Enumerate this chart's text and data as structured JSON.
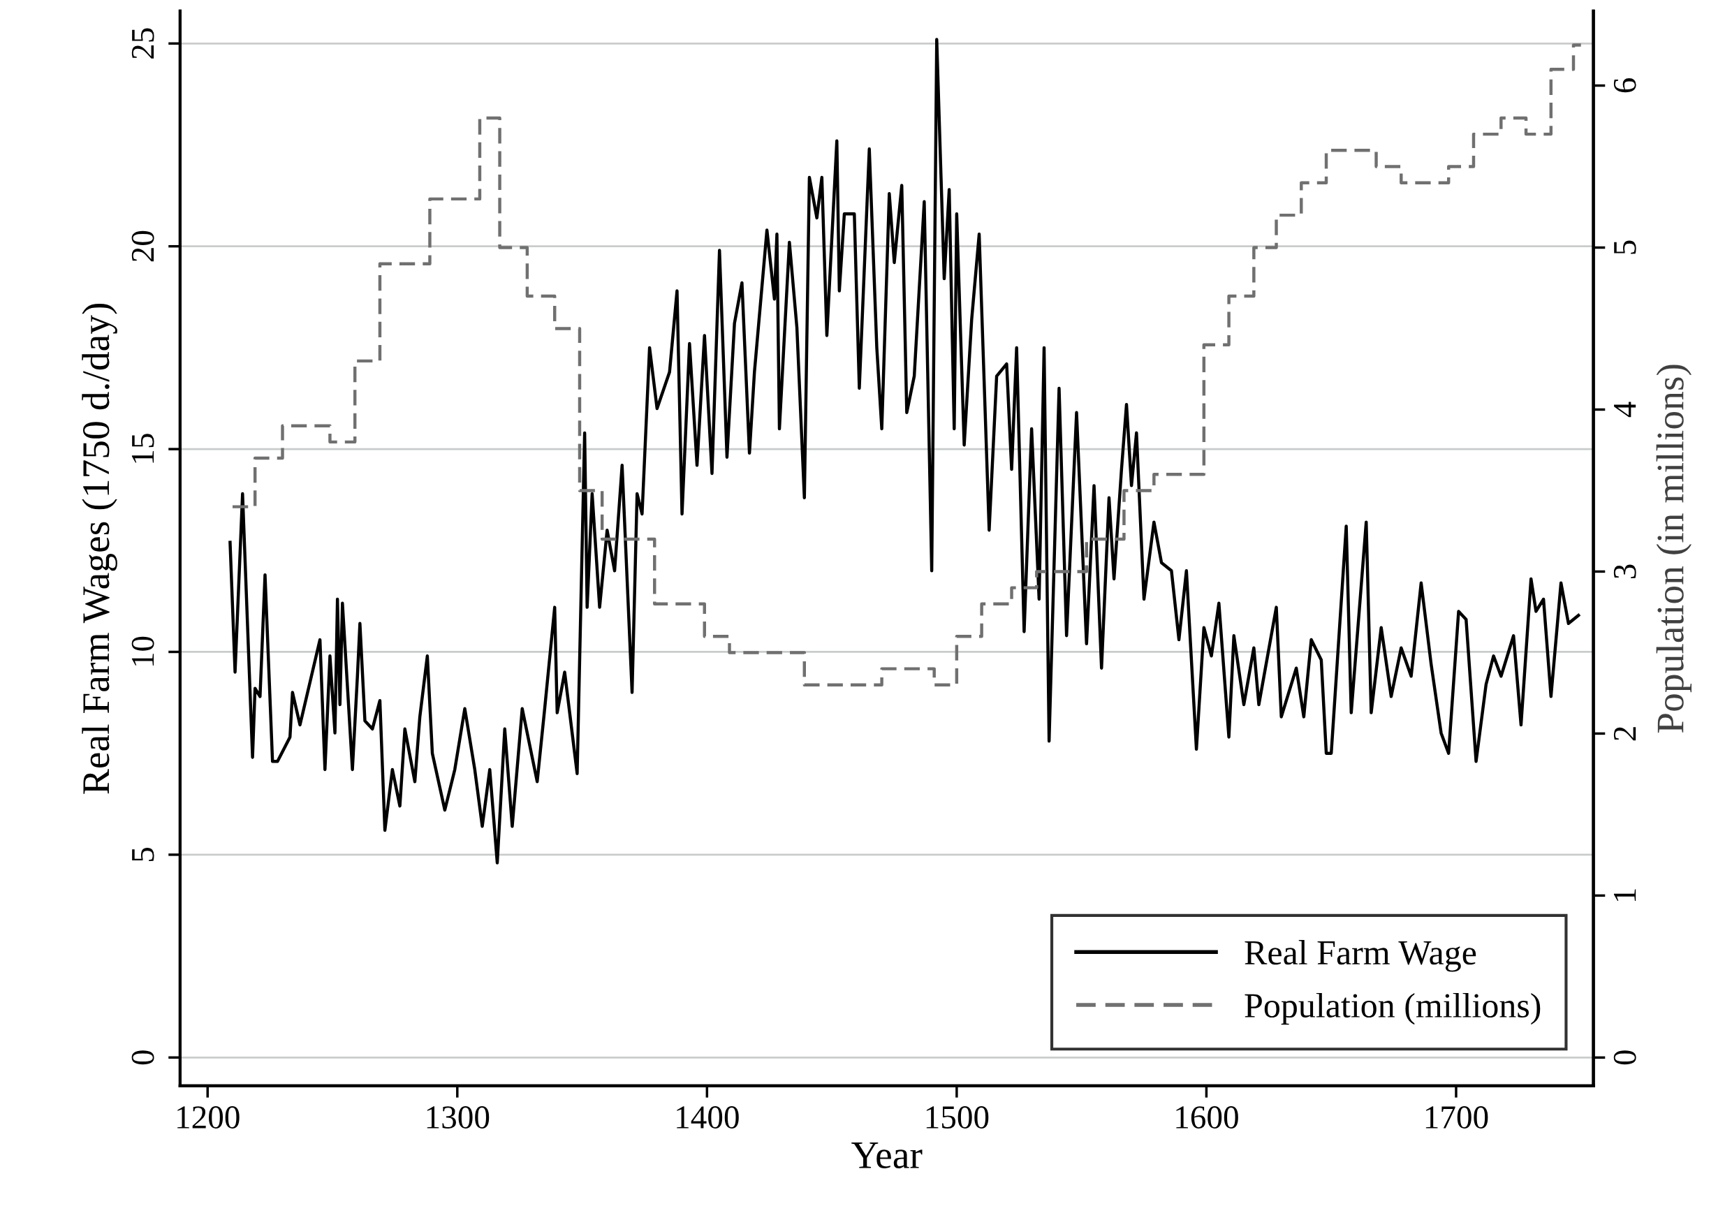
{
  "chart_data": {
    "type": "line",
    "xlabel": "Year",
    "ylabel": "Real Farm Wages (1750 d./day)",
    "y2label": "Population (in millions)",
    "xlim": [
      1189,
      1755
    ],
    "xticks": [
      1200,
      1300,
      1400,
      1500,
      1600,
      1700
    ],
    "ylim": [
      -0.7,
      25.8
    ],
    "yticks": [
      0,
      5,
      10,
      15,
      20,
      25
    ],
    "y2lim": [
      -0.175,
      6.46
    ],
    "y2ticks": [
      0,
      1,
      2,
      3,
      4,
      5,
      6
    ],
    "grid": "y",
    "legend": "bottom right",
    "marker": "none",
    "series": [
      {
        "name": "Real Farm Wage",
        "color": "#000000",
        "line_style": "solid",
        "x": [
          1209,
          1211,
          1214,
          1218,
          1219,
          1221,
          1223,
          1226,
          1228,
          1233,
          1234,
          1237,
          1245,
          1247,
          1249,
          1251,
          1252,
          1253,
          1254,
          1258,
          1260,
          1261,
          1263,
          1266,
          1269,
          1271,
          1274,
          1277,
          1279,
          1283,
          1285,
          1288,
          1290,
          1295,
          1299,
          1303,
          1307,
          1310,
          1313,
          1316,
          1319,
          1322,
          1326,
          1332,
          1335,
          1339,
          1340,
          1343,
          1345,
          1348,
          1351,
          1352,
          1354,
          1357,
          1360,
          1363,
          1366,
          1370,
          1372,
          1374,
          1377,
          1380,
          1385,
          1388,
          1390,
          1393,
          1396,
          1399,
          1402,
          1405,
          1408,
          1411,
          1414,
          1417,
          1419,
          1424,
          1427,
          1428,
          1429,
          1433,
          1436,
          1439,
          1441,
          1444,
          1446,
          1448,
          1452,
          1453,
          1455,
          1459,
          1461,
          1465,
          1468,
          1470,
          1473,
          1475,
          1478,
          1480,
          1483,
          1487,
          1490,
          1492,
          1495,
          1497,
          1499,
          1500,
          1503,
          1506,
          1509,
          1513,
          1516,
          1520,
          1522,
          1524,
          1527,
          1530,
          1533,
          1535,
          1537,
          1541,
          1544,
          1548,
          1552,
          1555,
          1558,
          1561,
          1563,
          1566,
          1568,
          1570,
          1572,
          1575,
          1579,
          1582,
          1586,
          1589,
          1592,
          1596,
          1599,
          1602,
          1605,
          1609,
          1611,
          1615,
          1619,
          1621,
          1628,
          1630,
          1636,
          1639,
          1642,
          1646,
          1648,
          1650,
          1656,
          1658,
          1664,
          1666,
          1670,
          1674,
          1678,
          1682,
          1686,
          1690,
          1694,
          1697,
          1701,
          1704,
          1708,
          1712,
          1715,
          1718,
          1723,
          1726,
          1730,
          1732,
          1735,
          1738,
          1742,
          1745,
          1749
        ],
        "values": [
          12.7,
          9.5,
          13.9,
          7.4,
          9.1,
          8.9,
          11.9,
          7.3,
          7.3,
          7.9,
          9.0,
          8.2,
          10.3,
          7.1,
          9.9,
          8.0,
          11.3,
          8.7,
          11.2,
          7.1,
          9.4,
          10.7,
          8.3,
          8.1,
          8.8,
          5.6,
          7.1,
          6.2,
          8.1,
          6.8,
          8.4,
          9.9,
          7.5,
          6.1,
          7.1,
          8.6,
          7.1,
          5.7,
          7.1,
          4.8,
          8.1,
          5.7,
          8.6,
          6.8,
          8.6,
          11.1,
          8.5,
          9.5,
          8.5,
          7.0,
          15.4,
          11.1,
          13.9,
          11.1,
          13.0,
          12.0,
          14.6,
          9.0,
          13.9,
          13.4,
          17.5,
          16.0,
          16.9,
          18.9,
          13.4,
          17.6,
          14.6,
          17.8,
          14.4,
          19.9,
          14.8,
          18.1,
          19.1,
          14.9,
          16.9,
          20.4,
          18.7,
          20.3,
          15.5,
          20.1,
          18.0,
          13.8,
          21.7,
          20.7,
          21.7,
          17.8,
          22.6,
          18.9,
          20.8,
          20.8,
          16.5,
          22.4,
          17.5,
          15.5,
          21.3,
          19.6,
          21.5,
          15.9,
          16.8,
          21.1,
          12.0,
          25.1,
          19.2,
          21.4,
          15.5,
          20.8,
          15.1,
          18.2,
          20.3,
          13.0,
          16.8,
          17.1,
          14.5,
          17.5,
          10.5,
          15.5,
          11.3,
          17.5,
          7.8,
          16.5,
          10.4,
          15.9,
          10.2,
          14.1,
          9.6,
          13.8,
          11.8,
          14.5,
          16.1,
          14.1,
          15.4,
          11.3,
          13.2,
          12.2,
          12.0,
          10.3,
          12.0,
          7.6,
          10.6,
          9.9,
          11.2,
          7.9,
          10.4,
          8.7,
          10.1,
          8.7,
          11.1,
          8.4,
          9.6,
          8.4,
          10.3,
          9.8,
          7.5,
          7.5,
          13.1,
          8.5,
          13.2,
          8.5,
          10.6,
          8.9,
          10.1,
          9.4,
          11.7,
          9.7,
          8.0,
          7.5,
          11.0,
          10.8,
          7.3,
          9.2,
          9.9,
          9.4,
          10.4,
          8.2,
          11.8,
          11.0,
          11.3,
          8.9,
          11.7,
          10.7,
          10.9
        ]
      },
      {
        "name": "Population (millions)",
        "type": "step",
        "axis": "y2",
        "color": "#707070",
        "line_style": "dashed",
        "x": [
          1210,
          1219,
          1230,
          1249,
          1259,
          1269,
          1289,
          1309,
          1317,
          1328,
          1339,
          1349,
          1358,
          1379,
          1399,
          1409,
          1439,
          1470,
          1491,
          1500,
          1510,
          1522,
          1532,
          1552,
          1567,
          1579,
          1599,
          1609,
          1619,
          1628,
          1638,
          1648,
          1668,
          1678,
          1697,
          1707,
          1718,
          1728,
          1738,
          1747,
          1750
        ],
        "values": [
          3.4,
          3.7,
          3.9,
          3.8,
          4.3,
          4.9,
          5.3,
          5.8,
          5.0,
          4.7,
          4.5,
          3.5,
          3.2,
          2.8,
          2.6,
          2.5,
          2.3,
          2.4,
          2.3,
          2.6,
          2.8,
          2.9,
          3.0,
          3.2,
          3.5,
          3.6,
          4.4,
          4.7,
          5.0,
          5.2,
          5.4,
          5.6,
          5.5,
          5.4,
          5.5,
          5.7,
          5.8,
          5.7,
          6.1,
          6.25,
          6.25
        ]
      }
    ]
  }
}
